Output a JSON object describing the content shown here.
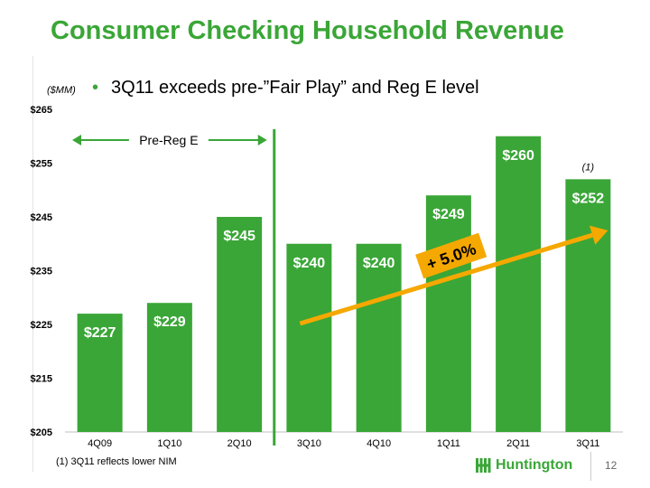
{
  "slide": {
    "title": "Consumer Checking Household Revenue",
    "unit_label": "($MM)",
    "bullet": "3Q11 exceeds pre-”Fair Play” and Reg E level",
    "footnote": "(1) 3Q11 reflects lower NIM",
    "page_number": "12",
    "logo_text": "Huntington",
    "logo_icon": "huntington-logo-icon"
  },
  "colors": {
    "title": "#3aa637",
    "bar": "#3aa637",
    "arrow": "#f5a800",
    "divider": "#3aa637"
  },
  "chart_data": {
    "type": "bar",
    "title": "",
    "ylabel": "($MM)",
    "categories": [
      "4Q09",
      "1Q10",
      "2Q10",
      "3Q10",
      "4Q10",
      "1Q11",
      "2Q11",
      "3Q11"
    ],
    "values": [
      227,
      229,
      245,
      240,
      240,
      249,
      260,
      252
    ],
    "data_labels": [
      "$227",
      "$229",
      "$245",
      "$240",
      "$240",
      "$249",
      "$260",
      "$252"
    ],
    "ylim": [
      205,
      265
    ],
    "yticks": [
      205,
      215,
      225,
      235,
      245,
      255,
      265
    ],
    "ytick_labels": [
      "$205",
      "$215",
      "$225",
      "$235",
      "$245",
      "$255",
      "$265"
    ],
    "annotations": {
      "pre_reg_label": "Pre-Reg E",
      "growth_label": "+ 5.0%",
      "footnote_marker": "(1)",
      "footnote_marker_category": "3Q11",
      "divider_after_category": "2Q10"
    }
  }
}
